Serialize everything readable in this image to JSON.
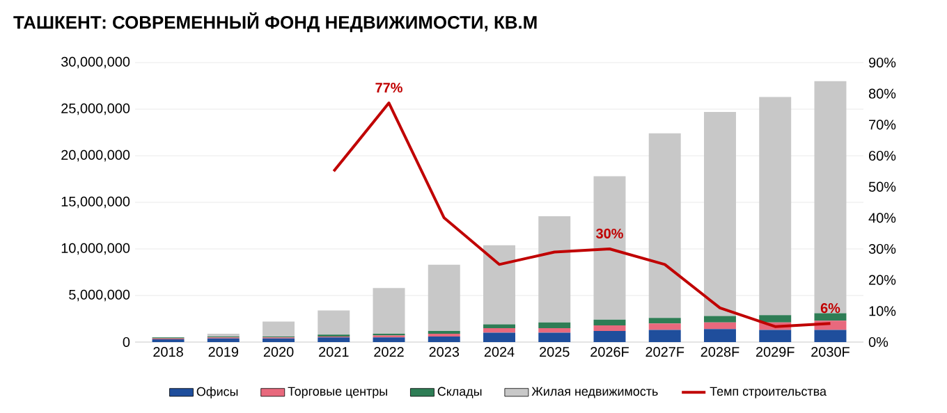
{
  "chart_data": {
    "type": "bar",
    "title": "ТАШКЕНТ: СОВРЕМЕННЫЙ ФОНД НЕДВИЖИМОСТИ, КВ.М",
    "categories": [
      "2018",
      "2019",
      "2020",
      "2021",
      "2022",
      "2023",
      "2024",
      "2025",
      "2026F",
      "2027F",
      "2028F",
      "2029F",
      "2030F"
    ],
    "stacked": true,
    "series": [
      {
        "name": "Офисы",
        "color": "#1f4e9c",
        "values": [
          300000,
          400000,
          400000,
          500000,
          500000,
          600000,
          1000000,
          1000000,
          1200000,
          1300000,
          1400000,
          1300000,
          1300000
        ]
      },
      {
        "name": "Торговые центры",
        "color": "#e8697d",
        "values": [
          100000,
          100000,
          100000,
          100000,
          200000,
          300000,
          500000,
          500000,
          600000,
          700000,
          700000,
          800000,
          1000000
        ]
      },
      {
        "name": "Склады",
        "color": "#2e7d55",
        "values": [
          100000,
          100000,
          100000,
          200000,
          200000,
          300000,
          400000,
          600000,
          600000,
          600000,
          700000,
          800000,
          800000
        ]
      },
      {
        "name": "Жилая недвижимость",
        "color": "#c8c8c8",
        "values": [
          null,
          300000,
          1600000,
          2600000,
          4900000,
          7100000,
          8500000,
          11400000,
          15400000,
          19800000,
          21900000,
          23400000,
          24900000
        ]
      },
      {
        "name": "Темп строительства",
        "type": "line",
        "axis": "y2",
        "color": "#c00000",
        "values": [
          null,
          null,
          null,
          55,
          77,
          40,
          25,
          29,
          30,
          25,
          11,
          5,
          6
        ],
        "value_labels": [
          null,
          null,
          null,
          null,
          "77%",
          null,
          null,
          null,
          "30%",
          null,
          null,
          null,
          "6%"
        ]
      }
    ],
    "ylim": [
      0,
      30000000
    ],
    "yticks": [
      {
        "value": 0,
        "label": "0"
      },
      {
        "value": 5000000,
        "label": "5,000,000"
      },
      {
        "value": 10000000,
        "label": "10,000,000"
      },
      {
        "value": 15000000,
        "label": "15,000,000"
      },
      {
        "value": 20000000,
        "label": "20,000,000"
      },
      {
        "value": 25000000,
        "label": "25,000,000"
      },
      {
        "value": 30000000,
        "label": "30,000,000"
      }
    ],
    "y2lim": [
      0,
      90
    ],
    "y2ticks": [
      {
        "value": 0,
        "label": "0%"
      },
      {
        "value": 10,
        "label": "10%"
      },
      {
        "value": 20,
        "label": "20%"
      },
      {
        "value": 30,
        "label": "30%"
      },
      {
        "value": 40,
        "label": "40%"
      },
      {
        "value": 50,
        "label": "50%"
      },
      {
        "value": 60,
        "label": "60%"
      },
      {
        "value": 70,
        "label": "70%"
      },
      {
        "value": 80,
        "label": "80%"
      },
      {
        "value": 90,
        "label": "90%"
      }
    ],
    "grid": "y",
    "legend": "bottom",
    "marker": "none",
    "line_style": "solid"
  }
}
